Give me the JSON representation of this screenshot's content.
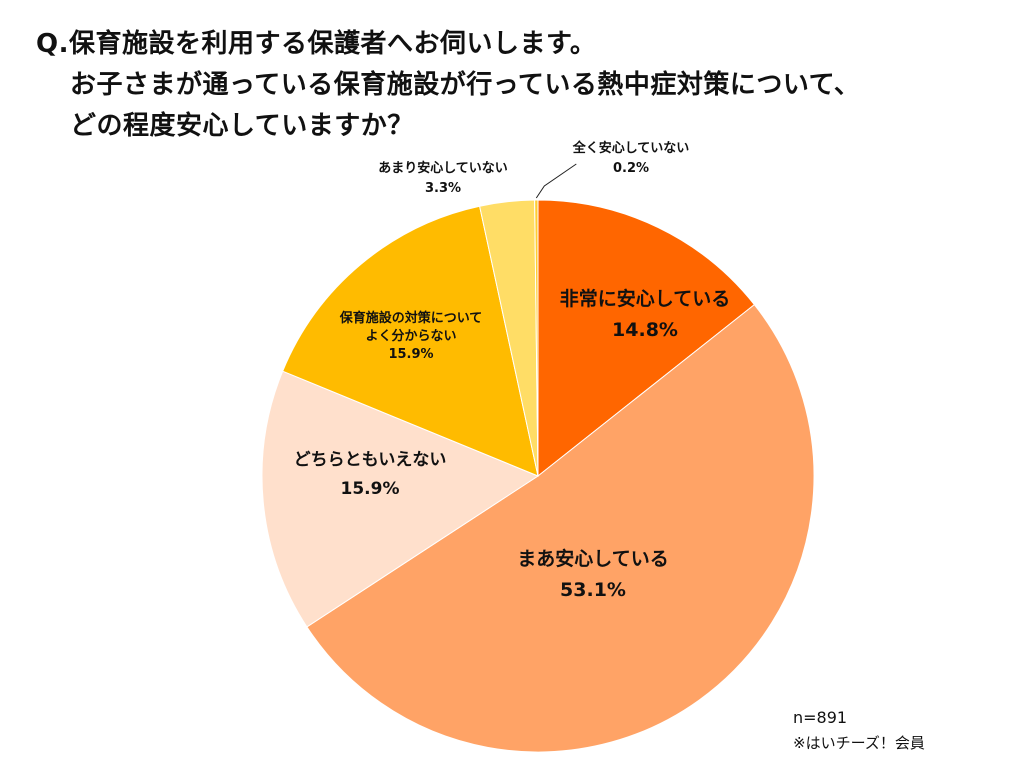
{
  "title": {
    "line1": "Q.保育施設を利用する保護者へお伺いします。",
    "line2": "お子さまが通っている保育施設が行っている熱中症対策について、",
    "line3": "どの程度安心していますか？"
  },
  "chart_data": {
    "type": "pie",
    "slices": [
      {
        "label": "非常に安心している",
        "value": 14.8,
        "value_label": "14.8%",
        "color": "#FF6600"
      },
      {
        "label": "まあ安心している",
        "value": 53.1,
        "value_label": "53.1%",
        "color": "#FFA366"
      },
      {
        "label": "どちらともいえない",
        "value": 15.9,
        "value_label": "15.9%",
        "color": "#FFE0CC"
      },
      {
        "label": "保育施設の対策について\nよく分からない",
        "value": 15.9,
        "value_label": "15.9%",
        "color": "#FFBB00"
      },
      {
        "label": "あまり安心していない",
        "value": 3.3,
        "value_label": "3.3%",
        "color": "#FFDD66"
      },
      {
        "label": "全く安心していない",
        "value": 0.2,
        "value_label": "0.2%",
        "color": "#FFCC33"
      }
    ]
  },
  "notes": {
    "sample": "n=891",
    "members": "※はいチーズ！会員"
  }
}
